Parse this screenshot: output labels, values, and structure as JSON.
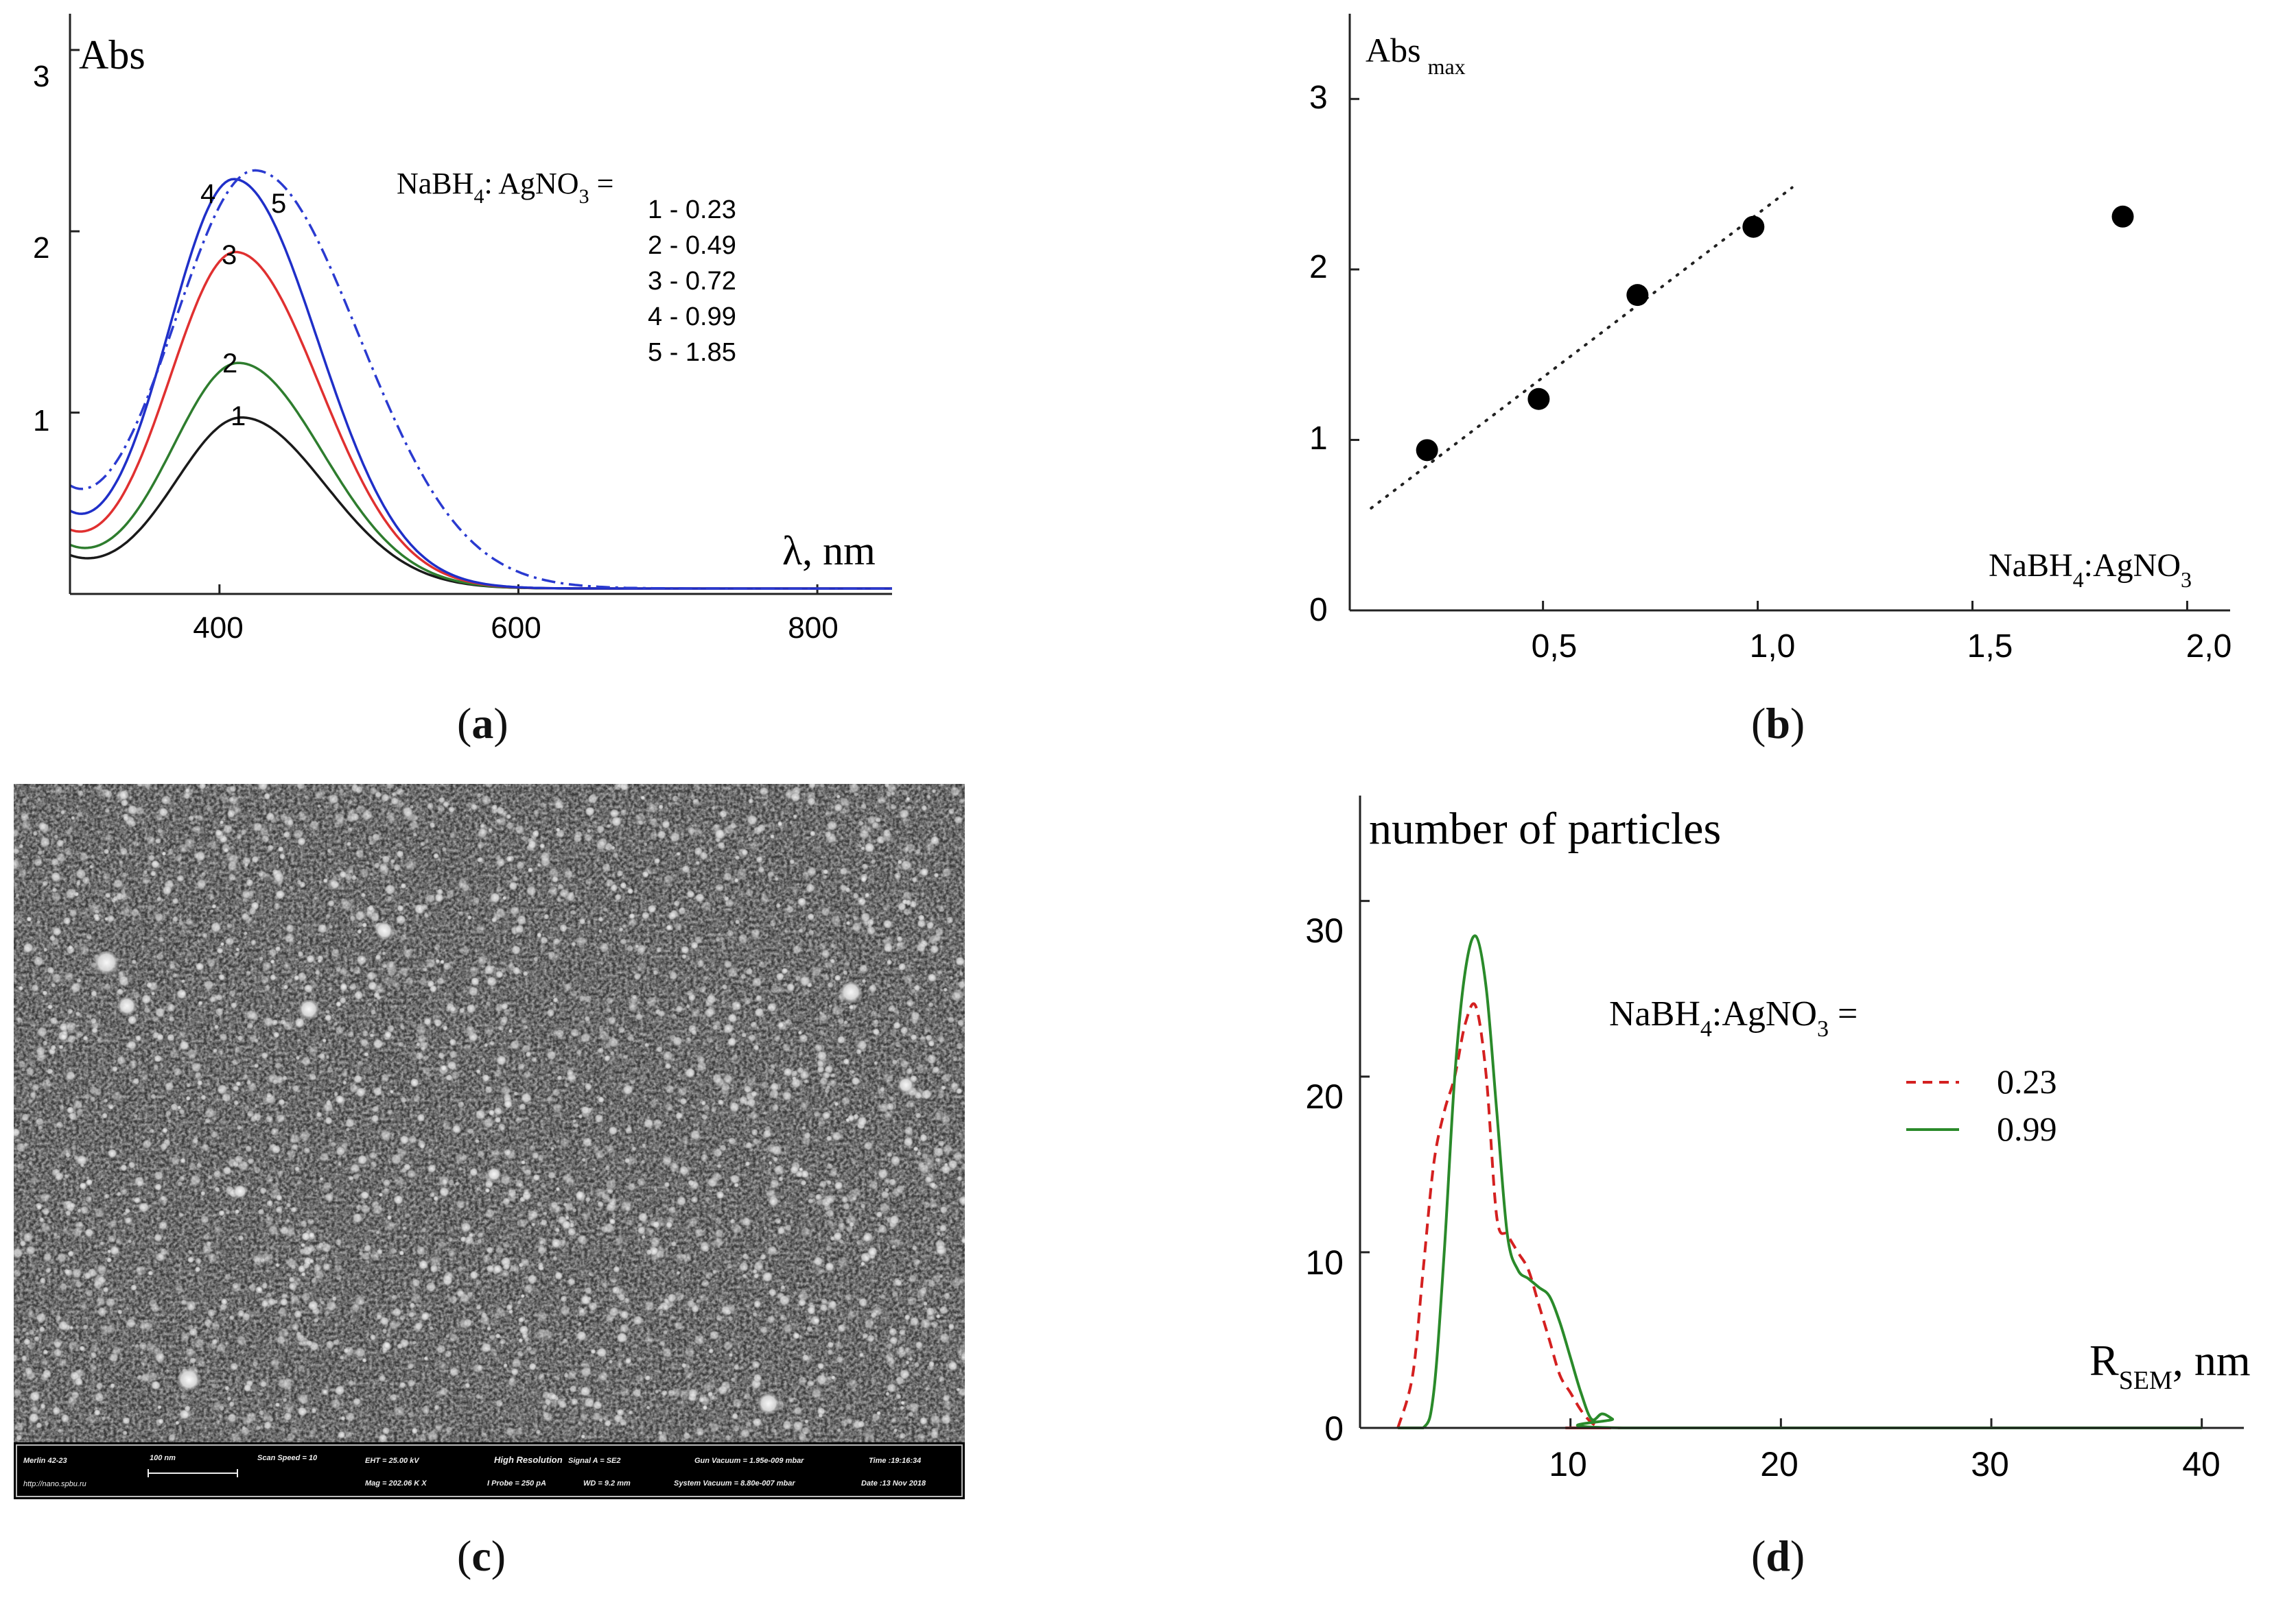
{
  "colors": {
    "c1": "#1a1a1a",
    "c2": "#2e7d2e",
    "c3": "#e03030",
    "c4": "#1f2fc8",
    "c5": "#2a3ad0",
    "points": "#000000",
    "d_red": "#d42020",
    "d_green": "#2a8a2a"
  },
  "captions": {
    "a": "a",
    "b": "b",
    "c": "c",
    "d": "d"
  },
  "sem_bar": {
    "instrument": "Merlin 42-23",
    "scale": "100 nm",
    "scan_speed": "Scan Speed = 10",
    "eht": "EHT = 25.00 kV",
    "mag": "Mag = 202.06 K X",
    "resolution": "High Resolution",
    "probe": "I Probe = 250 pA",
    "signal": "Signal A = SE2",
    "wd": "WD = 9.2 mm",
    "gun_vac": "Gun Vacuum = 1.95e-009 mbar",
    "sys_vac": "System Vacuum = 8.80e-007 mbar",
    "time": "Time :19:16:34",
    "date": "Date :13 Nov 2018",
    "url": "http://nano.spbu.ru"
  },
  "chart_data": [
    {
      "id": "a",
      "type": "line",
      "title": "",
      "ylabel": "Abs",
      "xlabel": "λ, nm",
      "xlim": [
        300,
        850
      ],
      "ylim": [
        0,
        3.2
      ],
      "xticks": [
        400,
        600,
        800
      ],
      "yticks": [
        1,
        2,
        3
      ],
      "xtick_labels": [
        "400",
        "600",
        "800"
      ],
      "ytick_labels": [
        "1",
        "2",
        "3"
      ],
      "legend_title": "NaBH",
      "legend_title_sub": "4",
      "legend_title_mid": ": AgNO",
      "legend_title_sub2": "3",
      "legend_title_end": " =",
      "legend_entries": [
        "1 - 0.23",
        "2 - 0.49",
        "3 - 0.72",
        "4 - 0.99",
        "5 - 1.85"
      ],
      "series": [
        {
          "name": "1",
          "label": "1",
          "ratio": 0.23,
          "peak": 0.94,
          "center": 415,
          "base": 0.15
        },
        {
          "name": "2",
          "label": "2",
          "ratio": 0.49,
          "peak": 1.24,
          "center": 413,
          "base": 0.19
        },
        {
          "name": "3",
          "label": "3",
          "ratio": 0.72,
          "peak": 1.85,
          "center": 411,
          "base": 0.24
        },
        {
          "name": "4",
          "label": "4",
          "ratio": 0.99,
          "peak": 2.25,
          "center": 410,
          "base": 0.32
        },
        {
          "name": "5",
          "label": "5",
          "ratio": 1.85,
          "peak": 2.3,
          "center": 424,
          "base": 0.38
        }
      ]
    },
    {
      "id": "b",
      "type": "scatter",
      "ylabel": "Abs",
      "ylabel_sub": "max",
      "xlabel": "NaBH",
      "xlabel_sub": "4",
      "xlabel_mid": ":AgNO",
      "xlabel_sub2": "3",
      "xlim": [
        0.05,
        2.1
      ],
      "ylim": [
        0,
        3.5
      ],
      "xticks": [
        0.5,
        1.0,
        1.5,
        2.0
      ],
      "xtick_labels": [
        "0,5",
        "1,0",
        "1,5",
        "2,0"
      ],
      "yticks": [
        0,
        1,
        2,
        3
      ],
      "ytick_labels": [
        "0",
        "1",
        "2",
        "3"
      ],
      "x": [
        0.23,
        0.49,
        0.72,
        0.99,
        1.85
      ],
      "y": [
        0.94,
        1.24,
        1.85,
        2.25,
        2.31
      ],
      "fit": {
        "x": [
          0.1,
          1.08
        ],
        "y": [
          0.6,
          2.48
        ]
      }
    },
    {
      "id": "d",
      "type": "line",
      "ylabel": "number of particles",
      "xlabel": "R",
      "xlabel_sub": "SEM",
      "xlabel_end": ", nm",
      "xlim": [
        0,
        42
      ],
      "ylim": [
        0,
        36
      ],
      "xticks": [
        10,
        20,
        30,
        40
      ],
      "xtick_labels": [
        "10",
        "20",
        "30",
        "40"
      ],
      "yticks": [
        0,
        10,
        20,
        30
      ],
      "ytick_labels": [
        "0",
        "10",
        "20",
        "30"
      ],
      "legend_title": "NaBH",
      "legend_title_sub": "4",
      "legend_title_mid": ":AgNO",
      "legend_title_sub2": "3",
      "legend_title_end": " =",
      "series": [
        {
          "name": "0.23",
          "style": "dashed",
          "x": [
            1.8,
            2.5,
            3.0,
            3.5,
            4.0,
            4.5,
            5.0,
            5.5,
            6.0,
            6.5,
            7.0,
            7.5,
            8.0,
            8.5,
            9.0,
            9.5,
            10.0,
            10.5,
            11.0,
            11.5,
            12.0,
            40
          ],
          "y": [
            0,
            3,
            9,
            15,
            18,
            20,
            23,
            24,
            20,
            12,
            11,
            10,
            9,
            7,
            5,
            3,
            2,
            1,
            0.3,
            0,
            0,
            0
          ]
        },
        {
          "name": "0.99",
          "style": "solid",
          "x": [
            1.8,
            3.0,
            3.5,
            4.0,
            4.5,
            5.0,
            5.5,
            6.0,
            6.5,
            7.0,
            7.5,
            8.0,
            8.5,
            9.0,
            9.5,
            10.0,
            10.5,
            11.0,
            11.5,
            12.0,
            12.5,
            40
          ],
          "y": [
            0,
            0,
            2,
            10,
            20,
            26,
            28,
            25,
            18,
            11,
            9,
            8.5,
            8,
            7.5,
            6,
            4,
            2,
            0.5,
            0.8,
            0.5,
            0,
            0
          ]
        }
      ]
    }
  ]
}
